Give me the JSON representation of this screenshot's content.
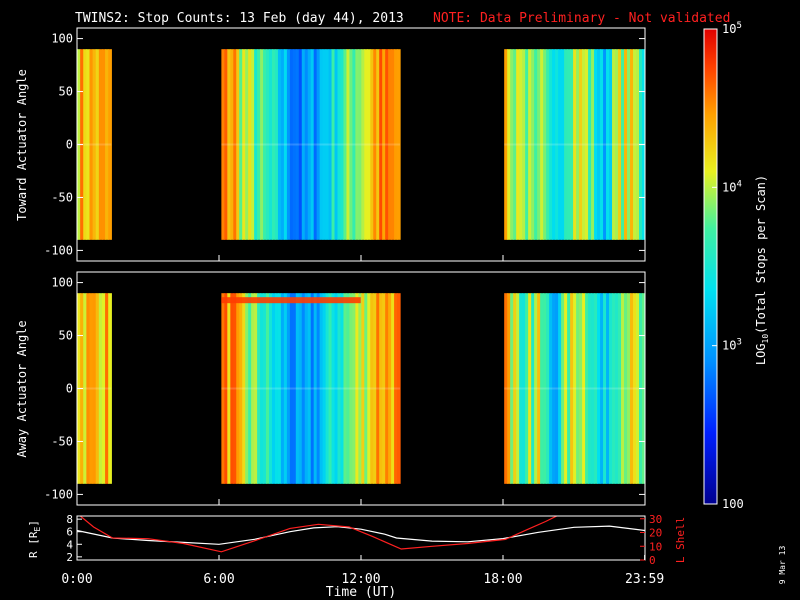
{
  "title": {
    "main": "TWINS2: Stop Counts: 13 Feb (day  44), 2013",
    "note": "NOTE: Data Preliminary - Not validated",
    "note_color": "#ff2020"
  },
  "stamp": "9 Mar 13",
  "chart_data": [
    {
      "type": "heatmap",
      "ylabel": "Toward Actuator Angle",
      "ylim": [
        -110,
        110
      ],
      "yticks": [
        -100,
        -50,
        0,
        50,
        100
      ],
      "xlim_hours": [
        0,
        24
      ],
      "data_y_range": [
        -90,
        90
      ],
      "data_blocks_hours": [
        [
          0.0,
          1.45
        ],
        [
          6.1,
          13.65
        ],
        [
          18.05,
          24.0
        ]
      ],
      "no_data_color": "#000000"
    },
    {
      "type": "heatmap",
      "ylabel": "Away Actuator Angle",
      "ylim": [
        -110,
        110
      ],
      "yticks": [
        -100,
        -50,
        0,
        50,
        100
      ],
      "xlim_hours": [
        0,
        24
      ],
      "data_y_range": [
        -90,
        90
      ],
      "data_blocks_hours": [
        [
          0.0,
          1.45
        ],
        [
          6.1,
          13.65
        ],
        [
          18.05,
          24.0
        ]
      ],
      "no_data_color": "#000000"
    },
    {
      "type": "line",
      "xlabel": "Time (UT)",
      "xtick_labels": [
        "0:00",
        "6:00",
        "12:00",
        "18:00",
        "23:59"
      ],
      "xtick_hours": [
        0,
        6,
        12,
        18,
        23.983
      ],
      "left_axis": {
        "label_prefix": "R [R",
        "label_sub": "E",
        "label_suffix": "]",
        "ticks": [
          2,
          4,
          6,
          8
        ],
        "ylim": [
          1.5,
          8.5
        ]
      },
      "right_axis": {
        "label": "L Shell",
        "ticks": [
          0,
          10,
          20,
          30
        ],
        "ylim": [
          0,
          32
        ],
        "color": "#ff2020"
      },
      "series": [
        {
          "axis": "left",
          "color": "#ffffff",
          "x": [
            0,
            0.5,
            1.5,
            3,
            4.5,
            6,
            7.5,
            9,
            10,
            11,
            12,
            13,
            13.5,
            15,
            16.5,
            18,
            19.5,
            21,
            22.5,
            24
          ],
          "y": [
            6.2,
            5.8,
            5.0,
            4.6,
            4.3,
            4.0,
            4.8,
            6.0,
            6.6,
            6.8,
            6.4,
            5.6,
            5.0,
            4.5,
            4.4,
            4.9,
            5.9,
            6.7,
            6.9,
            6.2
          ]
        },
        {
          "axis": "right",
          "color": "#ff2020",
          "x": [
            0,
            0.7,
            1.5,
            3,
            4.5,
            6.1,
            7.5,
            9,
            10.2,
            11.5,
            12.5,
            13.7,
            15,
            16.5,
            18.1,
            19,
            19.8,
            20.5
          ],
          "y": [
            34,
            24,
            16,
            15.5,
            12,
            6,
            14,
            23,
            26,
            24,
            17,
            8,
            10,
            12,
            15,
            22,
            28,
            34
          ]
        }
      ]
    }
  ],
  "colorbar": {
    "label_prefix": "LOG",
    "label_sub": "10",
    "label_suffix": "(Total Stops per Scan)",
    "ticks": [
      {
        "label": "100",
        "value_log": 2
      },
      {
        "label": "10",
        "sup": "3",
        "value_log": 3
      },
      {
        "label": "10",
        "sup": "4",
        "value_log": 4
      },
      {
        "label": "10",
        "sup": "5",
        "value_log": 5
      }
    ],
    "range_log": [
      2,
      5
    ]
  }
}
